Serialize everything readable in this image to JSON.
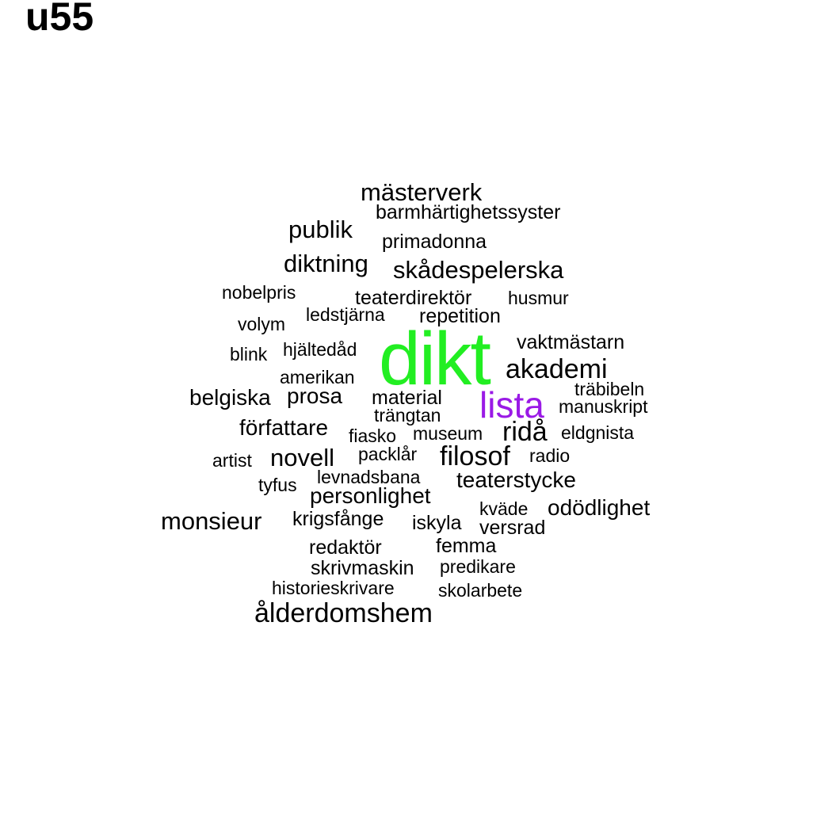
{
  "title": "u55",
  "colors": {
    "default": "#000000",
    "highlight_1": "#22ee22",
    "highlight_2": "#9a1ae6"
  },
  "words": {
    "masterverk": "mästerverk",
    "barmhartighetssyster": "barmhärtighetssyster",
    "publik": "publik",
    "primadonna": "primadonna",
    "diktning": "diktning",
    "skadespelerska": "skådespelerska",
    "nobelpris": "nobelpris",
    "teaterdirektor": "teaterdirektör",
    "husmur": "husmur",
    "volym": "volym",
    "ledstjarna": "ledstjärna",
    "repetition": "repetition",
    "vaktmastarn": "vaktmästarn",
    "blink": "blink",
    "hjaltedad": "hjältedåd",
    "dikt": "dikt",
    "akademi": "akademi",
    "amerikan": "amerikan",
    "trabibeln": "träbibeln",
    "belgiska": "belgiska",
    "prosa": "prosa",
    "material": "material",
    "lista": "lista",
    "manuskript": "manuskript",
    "trangtan": "trängtan",
    "forfattare": "författare",
    "fiasko": "fiasko",
    "museum": "museum",
    "rida": "ridå",
    "eldgnista": "eldgnista",
    "artist": "artist",
    "novell": "novell",
    "packlar": "packlår",
    "filosof": "filosof",
    "radio": "radio",
    "levnadsbana": "levnadsbana",
    "teaterstycke": "teaterstycke",
    "tyfus": "tyfus",
    "personlighet": "personlighet",
    "kvade": "kväde",
    "ododlighet": "odödlighet",
    "monsieur": "monsieur",
    "krigsfange": "krigsfånge",
    "iskyla": "iskyla",
    "versrad": "versrad",
    "redaktor": "redaktör",
    "femma": "femma",
    "skrivmaskin": "skrivmaskin",
    "predikare": "predikare",
    "historieskrivare": "historieskrivare",
    "skolarbete": "skolarbete",
    "alderdomshem": "ålderdomshem"
  }
}
